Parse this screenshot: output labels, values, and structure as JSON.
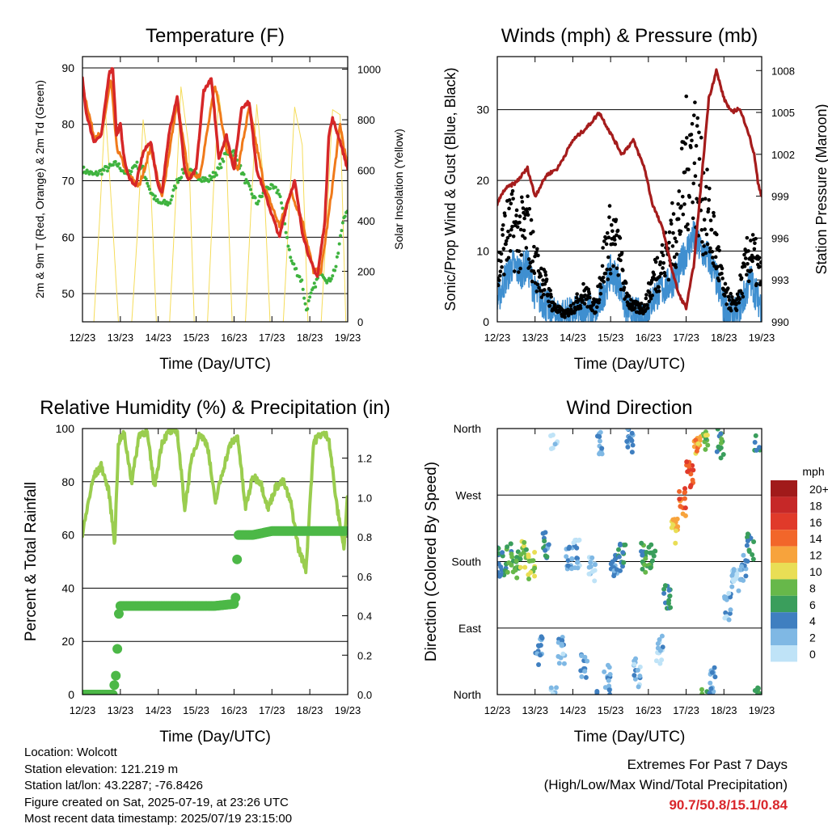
{
  "colors": {
    "temp_2m": "#d62728",
    "temp_9m": "#f07a1a",
    "dewpoint": "#3fb33f",
    "solar": "#f5dc5a",
    "wind": "#3f8fd0",
    "gust": "#000000",
    "pressure": "#a51c1c",
    "rh": "#9acd4f",
    "precip": "#4cb847",
    "extremes": "#d9262b"
  },
  "speed_scale": {
    "unit": "mph",
    "labels": [
      "20+",
      "18",
      "16",
      "14",
      "12",
      "10",
      "8",
      "6",
      "4",
      "2",
      "0"
    ],
    "colors": [
      "#a11a1a",
      "#c62828",
      "#e03a2a",
      "#f2662a",
      "#f7a33c",
      "#e9de55",
      "#67b84a",
      "#3a9e5c",
      "#3f7fc0",
      "#7fb8e4",
      "#bfe3f7"
    ]
  },
  "chart_data": [
    {
      "type": "line",
      "title": "Temperature (F)",
      "xlabel": "Time (Day/UTC)",
      "ylabel": "2m & 9m T (Red, Orange) & 2m Td (Green)",
      "y2label": "Solar Insolation (Yellow)",
      "x_ticks": [
        "12/23",
        "13/23",
        "14/23",
        "15/23",
        "16/23",
        "17/23",
        "18/23",
        "19/23"
      ],
      "ylim": [
        45,
        92
      ],
      "y_ticks": [
        50,
        60,
        70,
        80,
        90
      ],
      "y2lim": [
        0,
        1050
      ],
      "y2_ticks": [
        0,
        200,
        400,
        600,
        800,
        1000
      ],
      "grid": "horizontal",
      "series": [
        {
          "axis": "left",
          "x": [
            0,
            0.1,
            0.3,
            0.5,
            0.7,
            0.8,
            0.9,
            1.0,
            1.1,
            1.2,
            1.4,
            1.6,
            1.8,
            2.0,
            2.1,
            2.3,
            2.5,
            2.7,
            2.8,
            3.0,
            3.2,
            3.4,
            3.6,
            3.8,
            4.0,
            4.2,
            4.4,
            4.6,
            4.8,
            5.0,
            5.2,
            5.4,
            5.6,
            5.8,
            6.0,
            6.2,
            6.4,
            6.5,
            6.6,
            6.8,
            7.0
          ],
          "values": [
            88,
            82,
            77,
            78,
            89,
            90,
            78,
            80,
            74,
            71,
            69,
            75,
            77,
            69,
            68,
            79,
            85,
            72,
            70,
            72,
            86,
            88,
            74,
            78,
            72,
            83,
            84,
            72,
            68,
            64,
            60,
            66,
            70,
            61,
            56,
            53,
            63,
            78,
            81,
            77,
            72
          ]
        },
        {
          "axis": "left",
          "x": [
            0,
            0.3,
            0.5,
            0.75,
            0.9,
            1.2,
            1.5,
            1.8,
            2.1,
            2.5,
            2.8,
            3.1,
            3.5,
            3.8,
            4.1,
            4.4,
            4.8,
            5.2,
            5.5,
            5.8,
            6.1,
            6.3,
            6.5,
            6.8,
            7.0
          ],
          "values": [
            87,
            78,
            78,
            88,
            76,
            71,
            69,
            76,
            67,
            84,
            71,
            71,
            87,
            76,
            72,
            83,
            69,
            62,
            68,
            63,
            54,
            54,
            64,
            80,
            72
          ]
        },
        {
          "axis": "left",
          "x": [
            0,
            0.3,
            0.6,
            0.9,
            1.2,
            1.4,
            1.6,
            1.8,
            2.0,
            2.3,
            2.5,
            2.7,
            3.0,
            3.3,
            3.6,
            3.8,
            4.0,
            4.3,
            4.6,
            4.9,
            5.2,
            5.5,
            5.8,
            5.9,
            6.1,
            6.3,
            6.5,
            6.7,
            6.9,
            7.0
          ],
          "values": [
            72,
            71,
            72,
            73,
            71,
            73,
            72,
            68,
            66,
            66,
            70,
            72,
            71,
            70,
            72,
            75,
            75,
            70,
            66,
            69,
            68,
            56,
            52,
            47,
            51,
            54,
            52,
            55,
            64,
            64
          ]
        },
        {
          "axis": "right",
          "x": [
            0.3,
            0.45,
            0.6,
            0.8,
            0.95,
            1.3,
            1.45,
            1.6,
            1.8,
            1.95,
            2.3,
            2.45,
            2.6,
            2.8,
            2.95,
            3.3,
            3.45,
            3.6,
            3.8,
            3.95,
            4.3,
            4.45,
            4.6,
            4.8,
            4.95,
            5.3,
            5.45,
            5.6,
            5.8,
            5.95,
            6.3,
            6.45,
            6.6,
            6.8,
            6.95
          ],
          "values": [
            0,
            400,
            850,
            380,
            0,
            0,
            350,
            800,
            550,
            0,
            0,
            450,
            930,
            700,
            0,
            0,
            500,
            900,
            650,
            0,
            0,
            450,
            860,
            520,
            0,
            0,
            430,
            850,
            700,
            0,
            0,
            400,
            840,
            820,
            0
          ]
        }
      ]
    },
    {
      "type": "scatter",
      "title": "Winds (mph) & Pressure (mb)",
      "xlabel": "Time (Day/UTC)",
      "ylabel": "Sonic/Prop Wind & Gust (Blue, Black)",
      "y2label": "Station Pressure (Maroon)",
      "x_ticks": [
        "12/23",
        "13/23",
        "14/23",
        "15/23",
        "16/23",
        "17/23",
        "18/23",
        "19/23"
      ],
      "ylim": [
        0,
        37.5
      ],
      "y_ticks": [
        0,
        10,
        20,
        30
      ],
      "y2lim": [
        990,
        1009
      ],
      "y2_ticks": [
        990,
        993,
        996,
        999,
        1002,
        1005,
        1008
      ],
      "grid": "horizontal",
      "series": [
        {
          "axis": "left",
          "x": [
            0,
            0.2,
            0.4,
            0.6,
            0.8,
            1.0,
            1.2,
            1.5,
            1.8,
            2.0,
            2.3,
            2.6,
            2.8,
            3.0,
            3.2,
            3.4,
            3.6,
            3.9,
            4.2,
            4.5,
            4.8,
            5.0,
            5.2,
            5.4,
            5.6,
            5.8,
            6.0,
            6.3,
            6.5,
            6.7,
            7.0
          ],
          "values": [
            3,
            6,
            8,
            7,
            8,
            4,
            3,
            1,
            1,
            1,
            2,
            1,
            4,
            7,
            6,
            2,
            1,
            1,
            4,
            5,
            7,
            10,
            12,
            10,
            9,
            6,
            2,
            1,
            3,
            6,
            2
          ]
        },
        {
          "axis": "left",
          "x": [
            0,
            0.2,
            0.4,
            0.6,
            0.8,
            1.0,
            1.2,
            1.5,
            1.8,
            2.0,
            2.3,
            2.6,
            2.8,
            3.0,
            3.2,
            3.4,
            3.6,
            3.9,
            4.2,
            4.5,
            4.8,
            5.0,
            5.2,
            5.4,
            5.6,
            5.8,
            6.0,
            6.3,
            6.5,
            6.7,
            7.0
          ],
          "values": [
            6,
            12,
            13,
            12,
            13,
            8,
            6,
            2,
            1,
            2,
            4,
            2,
            8,
            12,
            10,
            4,
            2,
            2,
            7,
            10,
            14,
            22,
            25,
            18,
            14,
            10,
            4,
            2,
            6,
            10,
            6
          ]
        },
        {
          "axis": "right",
          "x": [
            0,
            0.2,
            0.5,
            0.8,
            1.0,
            1.3,
            1.6,
            2.0,
            2.4,
            2.7,
            2.9,
            3.1,
            3.3,
            3.6,
            3.9,
            4.1,
            4.4,
            4.6,
            4.8,
            5.0,
            5.2,
            5.4,
            5.6,
            5.8,
            5.9,
            6.0,
            6.2,
            6.4,
            6.6,
            6.8,
            6.9,
            7.0
          ],
          "values": [
            998.5,
            999.5,
            1000,
            1001,
            999,
            1000.5,
            1001,
            1003,
            1004,
            1005,
            1004,
            1003,
            1002,
            1003,
            1001,
            998.5,
            996.5,
            994,
            992,
            991,
            994,
            1000,
            1006,
            1008,
            1007,
            1006,
            1005,
            1005.3,
            1004,
            1002,
            1000,
            999
          ]
        }
      ]
    },
    {
      "type": "line",
      "title": "Relative Humidity (%) & Precipitation (in)",
      "xlabel": "Time (Day/UTC)",
      "ylabel": "Percent & Total Rainfall",
      "x_ticks": [
        "12/23",
        "13/23",
        "14/23",
        "15/23",
        "16/23",
        "17/23",
        "18/23",
        "19/23"
      ],
      "ylim": [
        0,
        100
      ],
      "y_ticks": [
        0,
        20,
        40,
        60,
        80,
        100
      ],
      "y2lim": [
        0,
        1.35
      ],
      "y2_ticks": [
        0.0,
        0.2,
        0.4,
        0.6,
        0.8,
        1.0,
        1.2
      ],
      "grid": "horizontal",
      "series": [
        {
          "axis": "left",
          "x": [
            0,
            0.15,
            0.3,
            0.5,
            0.7,
            0.85,
            0.95,
            1.1,
            1.3,
            1.5,
            1.7,
            1.9,
            2.1,
            2.3,
            2.5,
            2.7,
            2.9,
            3.1,
            3.3,
            3.5,
            3.7,
            3.9,
            4.1,
            4.3,
            4.5,
            4.7,
            4.9,
            5.1,
            5.3,
            5.5,
            5.7,
            5.9,
            6.1,
            6.3,
            6.5,
            6.7,
            6.9,
            7.0
          ],
          "values": [
            60,
            72,
            82,
            86,
            76,
            57,
            95,
            98,
            80,
            98,
            99,
            78,
            95,
            99,
            99,
            70,
            90,
            98,
            94,
            72,
            84,
            94,
            97,
            70,
            82,
            80,
            70,
            78,
            80,
            72,
            55,
            47,
            95,
            98,
            97,
            72,
            55,
            75
          ]
        },
        {
          "axis": "right",
          "x": [
            0,
            0.8,
            0.9,
            0.95,
            1.0,
            1.5,
            2.5,
            3.5,
            4.0,
            4.05,
            4.1,
            4.5,
            5.0,
            6.0,
            7.0
          ],
          "values": [
            0.0,
            0.0,
            0.12,
            0.4,
            0.45,
            0.45,
            0.45,
            0.45,
            0.46,
            0.5,
            0.81,
            0.81,
            0.83,
            0.83,
            0.83
          ]
        }
      ]
    },
    {
      "type": "scatter",
      "title": "Wind Direction",
      "xlabel": "Time (Day/UTC)",
      "ylabel": "Direction (Colored By Speed)",
      "x_ticks": [
        "12/23",
        "13/23",
        "14/23",
        "15/23",
        "16/23",
        "17/23",
        "18/23",
        "19/23"
      ],
      "y_ticks": [
        "North",
        "East",
        "South",
        "West",
        "North"
      ],
      "ylim": [
        0,
        360
      ],
      "grid": "horizontal",
      "legend": "right",
      "series": [
        {
          "x": [
            0.1,
            0.3,
            0.5,
            0.7,
            0.9,
            1.1,
            1.3,
            1.5,
            1.7,
            1.9,
            2.1,
            2.3,
            2.5,
            2.7,
            2.9,
            3.1,
            3.3,
            3.5,
            3.7,
            3.9,
            4.1,
            4.3,
            4.5,
            4.7,
            4.9,
            5.1,
            5.3,
            5.5,
            5.7,
            5.9,
            6.1,
            6.3,
            6.5,
            6.7,
            6.9
          ],
          "values": [
            180,
            185,
            178,
            190,
            175,
            60,
            200,
            350,
            60,
            185,
            190,
            40,
            170,
            345,
            20,
            180,
            185,
            340,
            30,
            185,
            190,
            60,
            130,
            220,
            260,
            300,
            340,
            350,
            20,
            340,
            120,
            150,
            170,
            200,
            350
          ],
          "speeds": [
            5,
            6,
            7,
            8,
            9,
            3,
            4,
            1,
            2,
            3,
            2,
            3,
            1,
            3,
            3,
            4,
            5,
            3,
            2,
            6,
            7,
            2,
            5,
            11,
            14,
            15,
            12,
            8,
            3,
            6,
            2,
            1,
            3,
            5,
            6
          ]
        }
      ]
    }
  ],
  "info": {
    "location": "Location: Wolcott",
    "elevation": "Station elevation: 121.219 m",
    "latlon": "Station lat/lon: 43.2287; -76.8426",
    "created": "Figure created on Sat, 2025-07-19, at 23:26 UTC",
    "recent": "Most recent data timestamp: 2025/07/19 23:15:00"
  },
  "extremes": {
    "title": "Extremes For Past 7 Days",
    "subtitle": "(High/Low/Max Wind/Total Precipitation)",
    "values": "90.7/50.8/15.1/0.84"
  }
}
